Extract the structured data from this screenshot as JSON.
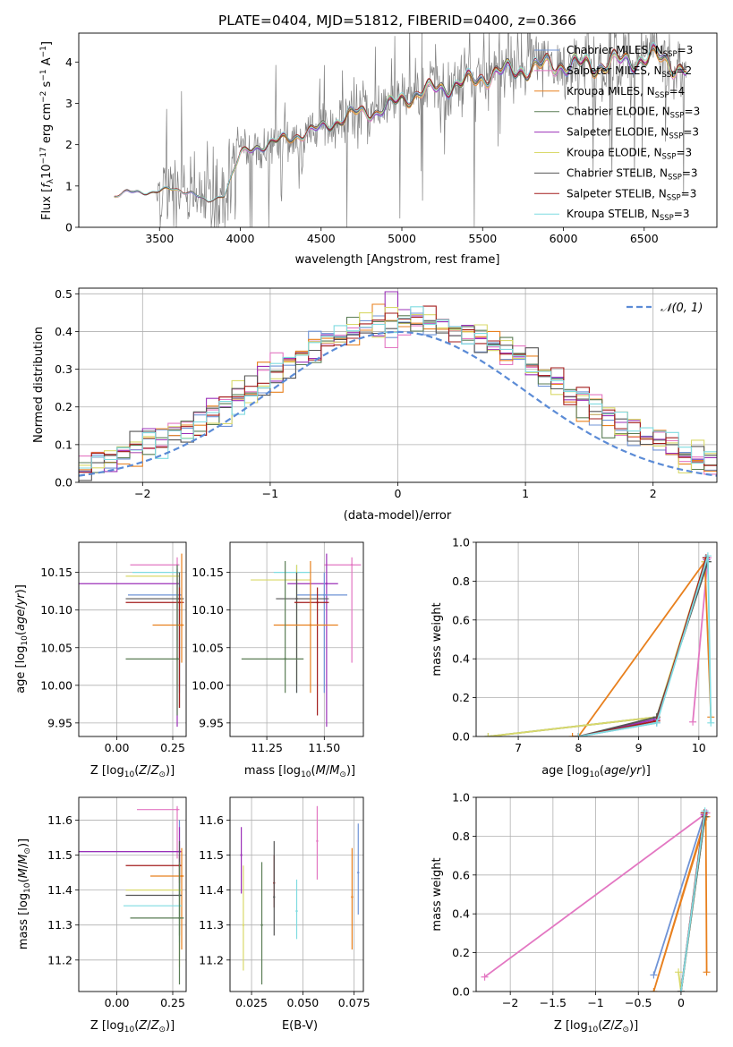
{
  "figure": {
    "title": "PLATE=0404, MJD=51812, FIBERID=0400, z=0.366"
  },
  "colors": {
    "Chabrier MILES": "#6f93d6",
    "Salpeter MILES": "#e377c2",
    "Kroupa MILES": "#e8801e",
    "Chabrier ELODIE": "#5a7d55",
    "Salpeter ELODIE": "#9b30b8",
    "Kroupa ELODIE": "#d9d96a",
    "Chabrier STELIB": "#555555",
    "Salpeter STELIB": "#a31c1c",
    "Kroupa STELIB": "#7fdbe0",
    "data": "#808080",
    "normal": "#5b8bd6"
  },
  "chart_data": [
    {
      "id": "spectrum",
      "type": "line",
      "xlabel": "wavelength [Angstrom, rest frame]",
      "ylabel_parts": [
        "Flux [",
        "f",
        "λ",
        "10",
        "−17",
        " erg cm",
        "−2",
        " s",
        "−1",
        " A",
        "−1",
        "]"
      ],
      "xlim": [
        3000,
        6950
      ],
      "ylim": [
        0,
        4.7
      ],
      "xticks": [
        3500,
        4000,
        4500,
        5000,
        5500,
        6000,
        6500
      ],
      "yticks": [
        0,
        1,
        2,
        3,
        4
      ],
      "continuum_anchors": [
        [
          3220,
          0.75
        ],
        [
          3300,
          0.85
        ],
        [
          3450,
          0.85
        ],
        [
          3560,
          0.92
        ],
        [
          3700,
          0.85
        ],
        [
          3800,
          0.6
        ],
        [
          3900,
          0.8
        ],
        [
          4000,
          1.75
        ],
        [
          4100,
          1.95
        ],
        [
          4300,
          2.15
        ],
        [
          4500,
          2.4
        ],
        [
          4700,
          2.75
        ],
        [
          4850,
          2.8
        ],
        [
          5000,
          3.1
        ],
        [
          5200,
          3.35
        ],
        [
          5400,
          3.5
        ],
        [
          5600,
          3.75
        ],
        [
          5800,
          3.85
        ],
        [
          6000,
          3.95
        ],
        [
          6200,
          3.9
        ],
        [
          6400,
          4.05
        ],
        [
          6600,
          4.1
        ],
        [
          6750,
          3.8
        ]
      ],
      "legend": [
        {
          "label": "Chabrier MILES, N",
          "sub": "SSP",
          "count": "=3"
        },
        {
          "label": "Salpeter MILES, N",
          "sub": "SSP",
          "count": "=2"
        },
        {
          "label": "Kroupa MILES, N",
          "sub": "SSP",
          "count": "=4"
        },
        {
          "label": "Chabrier ELODIE, N",
          "sub": "SSP",
          "count": "=3"
        },
        {
          "label": "Salpeter ELODIE, N",
          "sub": "SSP",
          "count": "=3"
        },
        {
          "label": "Kroupa ELODIE, N",
          "sub": "SSP",
          "count": "=3"
        },
        {
          "label": "Chabrier STELIB, N",
          "sub": "SSP",
          "count": "=3"
        },
        {
          "label": "Salpeter STELIB, N",
          "sub": "SSP",
          "count": "=3"
        },
        {
          "label": "Kroupa STELIB, N",
          "sub": "SSP",
          "count": "=3"
        }
      ],
      "legend_position": "upper right",
      "grid": false
    },
    {
      "id": "residuals",
      "type": "step",
      "xlabel": "(data-model)/error",
      "ylabel": "Normed distribution",
      "xlim": [
        -2.5,
        2.5
      ],
      "ylim": [
        0,
        0.515
      ],
      "xticks": [
        -2,
        -1,
        0,
        1,
        2
      ],
      "yticks": [
        0.0,
        0.1,
        0.2,
        0.3,
        0.4,
        0.5
      ],
      "bin_width": 0.1,
      "legend": "𝒩(0, 1)",
      "legend_position": "upper right",
      "grid": true
    },
    {
      "id": "age-vs-Z",
      "type": "errorbar",
      "xlabel": "Z [log10(Z/Z⊙)]",
      "ylabel": "age [log10(age/yr)]",
      "xlim": [
        -0.17,
        0.31
      ],
      "ylim": [
        9.932,
        10.19
      ],
      "xticks": [
        0.0,
        0.25
      ],
      "yticks": [
        9.95,
        10.0,
        10.05,
        10.1,
        10.15
      ],
      "grid": true,
      "points": [
        {
          "model": "Salpeter MILES",
          "x": 0.27,
          "y": 10.16,
          "xlo": 0.06,
          "xhi": 0.28,
          "ylo": 10.06,
          "yhi": 10.17
        },
        {
          "model": "Kroupa STELIB",
          "x": 0.27,
          "y": 10.15,
          "xlo": 0.07,
          "xhi": 0.28,
          "ylo": 10.05,
          "yhi": 10.16
        },
        {
          "model": "Kroupa ELODIE",
          "x": 0.27,
          "y": 10.145,
          "xlo": 0.04,
          "xhi": 0.28,
          "ylo": 10.0,
          "yhi": 10.15
        },
        {
          "model": "Salpeter ELODIE",
          "x": 0.27,
          "y": 10.135,
          "xlo": -0.17,
          "xhi": 0.28,
          "ylo": 9.945,
          "yhi": 10.155
        },
        {
          "model": "Chabrier MILES",
          "x": 0.28,
          "y": 10.12,
          "xlo": 0.05,
          "xhi": 0.29,
          "ylo": 9.99,
          "yhi": 10.14
        },
        {
          "model": "Chabrier STELIB",
          "x": 0.28,
          "y": 10.115,
          "xlo": 0.04,
          "xhi": 0.3,
          "ylo": 9.97,
          "yhi": 10.15
        },
        {
          "model": "Salpeter STELIB",
          "x": 0.28,
          "y": 10.11,
          "xlo": 0.04,
          "xhi": 0.3,
          "ylo": 9.97,
          "yhi": 10.13
        },
        {
          "model": "Kroupa MILES",
          "x": 0.29,
          "y": 10.08,
          "xlo": 0.16,
          "xhi": 0.3,
          "ylo": 10.03,
          "yhi": 10.175
        },
        {
          "model": "Chabrier ELODIE",
          "x": 0.27,
          "y": 10.035,
          "xlo": 0.04,
          "xhi": 0.28,
          "ylo": 9.96,
          "yhi": 10.16
        }
      ]
    },
    {
      "id": "age-vs-mass",
      "type": "errorbar",
      "xlabel": "mass [log10(M/M⊙)]",
      "ylabel": "",
      "xlim": [
        11.09,
        11.67
      ],
      "ylim": [
        9.932,
        10.19
      ],
      "xticks": [
        11.25,
        11.5
      ],
      "yticks": [
        9.95,
        10.0,
        10.05,
        10.1,
        10.15
      ],
      "grid": true,
      "points": [
        {
          "model": "Salpeter MILES",
          "x": 11.62,
          "y": 10.16,
          "xlo": 11.5,
          "xhi": 11.66,
          "ylo": 10.03,
          "yhi": 10.17
        },
        {
          "model": "Kroupa STELIB",
          "x": 11.38,
          "y": 10.15,
          "xlo": 11.28,
          "xhi": 11.44,
          "ylo": 9.99,
          "yhi": 10.16
        },
        {
          "model": "Kroupa ELODIE",
          "x": 11.38,
          "y": 10.14,
          "xlo": 11.18,
          "xhi": 11.44,
          "ylo": 10.0,
          "yhi": 10.16
        },
        {
          "model": "Salpeter ELODIE",
          "x": 11.51,
          "y": 10.135,
          "xlo": 11.34,
          "xhi": 11.56,
          "ylo": 9.945,
          "yhi": 10.175
        },
        {
          "model": "Chabrier MILES",
          "x": 11.5,
          "y": 10.12,
          "xlo": 11.38,
          "xhi": 11.6,
          "ylo": 9.99,
          "yhi": 10.15
        },
        {
          "model": "Chabrier STELIB",
          "x": 11.38,
          "y": 10.115,
          "xlo": 11.29,
          "xhi": 11.52,
          "ylo": 9.99,
          "yhi": 10.15
        },
        {
          "model": "Salpeter STELIB",
          "x": 11.47,
          "y": 10.11,
          "xlo": 11.37,
          "xhi": 11.52,
          "ylo": 9.96,
          "yhi": 10.13
        },
        {
          "model": "Kroupa MILES",
          "x": 11.44,
          "y": 10.08,
          "xlo": 11.28,
          "xhi": 11.56,
          "ylo": 9.99,
          "yhi": 10.165
        },
        {
          "model": "Chabrier ELODIE",
          "x": 11.33,
          "y": 10.035,
          "xlo": 11.14,
          "xhi": 11.41,
          "ylo": 9.99,
          "yhi": 10.165
        }
      ]
    },
    {
      "id": "weight-vs-age",
      "type": "line",
      "xlabel": "age [log10(age/yr)]",
      "ylabel": "mass weight",
      "xlim": [
        6.3,
        10.3
      ],
      "ylim": [
        0,
        1.0
      ],
      "xticks": [
        7,
        8,
        9,
        10
      ],
      "yticks": [
        0.0,
        0.2,
        0.4,
        0.6,
        0.8,
        1.0
      ],
      "grid": true,
      "series": [
        {
          "model": "Chabrier MILES",
          "x": [
            8.0,
            9.3,
            10.12
          ],
          "y": [
            0.0,
            0.07,
            0.92
          ]
        },
        {
          "model": "Salpeter MILES",
          "x": [
            9.9,
            10.15
          ],
          "y": [
            0.075,
            0.92
          ]
        },
        {
          "model": "Kroupa MILES",
          "x": [
            7.9,
            8.0,
            10.1,
            10.2
          ],
          "y": [
            0.0,
            0.0,
            0.9,
            0.1
          ]
        },
        {
          "model": "Chabrier ELODIE",
          "x": [
            6.5,
            9.3,
            10.15
          ],
          "y": [
            0.0,
            0.1,
            0.9
          ]
        },
        {
          "model": "Salpeter ELODIE",
          "x": [
            8.0,
            9.3,
            10.13
          ],
          "y": [
            0.0,
            0.09,
            0.91
          ]
        },
        {
          "model": "Kroupa ELODIE",
          "x": [
            6.5,
            9.3,
            10.1
          ],
          "y": [
            0.0,
            0.1,
            0.9
          ]
        },
        {
          "model": "Chabrier STELIB",
          "x": [
            8.0,
            9.3,
            10.15
          ],
          "y": [
            0.0,
            0.1,
            0.9
          ]
        },
        {
          "model": "Salpeter STELIB",
          "x": [
            8.0,
            9.3,
            10.12
          ],
          "y": [
            0.0,
            0.08,
            0.92
          ]
        },
        {
          "model": "Kroupa STELIB",
          "x": [
            8.0,
            9.3,
            10.15,
            10.2
          ],
          "y": [
            0.0,
            0.07,
            0.93,
            0.07
          ]
        }
      ]
    },
    {
      "id": "mass-vs-Z",
      "type": "errorbar",
      "xlabel": "Z [log10(Z/Z⊙)]",
      "ylabel": "mass [log10(M/M⊙)]",
      "xlim": [
        -0.17,
        0.31
      ],
      "ylim": [
        11.11,
        11.665
      ],
      "xticks": [
        0.0,
        0.25
      ],
      "yticks": [
        11.2,
        11.3,
        11.4,
        11.5,
        11.6
      ],
      "grid": true,
      "points": [
        {
          "model": "Salpeter MILES",
          "x": 0.27,
          "y": 11.63,
          "xlo": 0.09,
          "xhi": 0.28,
          "ylo": 11.49,
          "yhi": 11.64
        },
        {
          "model": "Chabrier MILES",
          "x": 0.28,
          "y": 11.51,
          "xlo": -0.17,
          "xhi": 0.29,
          "ylo": 11.38,
          "yhi": 11.6
        },
        {
          "model": "Salpeter ELODIE",
          "x": 0.28,
          "y": 11.51,
          "xlo": -0.17,
          "xhi": 0.29,
          "ylo": 11.39,
          "yhi": 11.58
        },
        {
          "model": "Salpeter STELIB",
          "x": 0.28,
          "y": 11.47,
          "xlo": 0.04,
          "xhi": 0.29,
          "ylo": 11.42,
          "yhi": 11.5
        },
        {
          "model": "Kroupa MILES",
          "x": 0.29,
          "y": 11.44,
          "xlo": 0.15,
          "xhi": 0.3,
          "ylo": 11.23,
          "yhi": 11.52
        },
        {
          "model": "Kroupa ELODIE",
          "x": 0.28,
          "y": 11.4,
          "xlo": 0.04,
          "xhi": 0.29,
          "ylo": 11.18,
          "yhi": 11.47
        },
        {
          "model": "Chabrier STELIB",
          "x": 0.28,
          "y": 11.385,
          "xlo": 0.04,
          "xhi": 0.29,
          "ylo": 11.27,
          "yhi": 11.54
        },
        {
          "model": "Kroupa STELIB",
          "x": 0.28,
          "y": 11.355,
          "xlo": 0.03,
          "xhi": 0.29,
          "ylo": 11.25,
          "yhi": 11.43
        },
        {
          "model": "Chabrier ELODIE",
          "x": 0.28,
          "y": 11.32,
          "xlo": 0.06,
          "xhi": 0.3,
          "ylo": 11.13,
          "yhi": 11.48
        }
      ]
    },
    {
      "id": "mass-vs-ebv",
      "type": "errorbar",
      "xlabel": "E(B-V)",
      "ylabel": "",
      "xlim": [
        0.0145,
        0.0795
      ],
      "ylim": [
        11.11,
        11.665
      ],
      "xticks": [
        0.025,
        0.05,
        0.075
      ],
      "yticks": [
        11.2,
        11.3,
        11.4,
        11.5,
        11.6
      ],
      "grid": true,
      "points": [
        {
          "model": "Salpeter ELODIE",
          "x": 0.02,
          "y": 11.5,
          "ylo": 11.39,
          "yhi": 11.58
        },
        {
          "model": "Kroupa ELODIE",
          "x": 0.021,
          "y": 11.3,
          "ylo": 11.17,
          "yhi": 11.47
        },
        {
          "model": "Chabrier ELODIE",
          "x": 0.03,
          "y": 11.3,
          "ylo": 11.13,
          "yhi": 11.48
        },
        {
          "model": "Salpeter STELIB",
          "x": 0.036,
          "y": 11.42,
          "ylo": 11.35,
          "yhi": 11.5
        },
        {
          "model": "Chabrier STELIB",
          "x": 0.036,
          "y": 11.38,
          "ylo": 11.27,
          "yhi": 11.54
        },
        {
          "model": "Kroupa STELIB",
          "x": 0.047,
          "y": 11.34,
          "ylo": 11.26,
          "yhi": 11.43
        },
        {
          "model": "Salpeter MILES",
          "x": 0.057,
          "y": 11.54,
          "ylo": 11.43,
          "yhi": 11.64
        },
        {
          "model": "Kroupa MILES",
          "x": 0.074,
          "y": 11.38,
          "ylo": 11.23,
          "yhi": 11.52
        },
        {
          "model": "Chabrier MILES",
          "x": 0.077,
          "y": 11.45,
          "ylo": 11.33,
          "yhi": 11.59
        }
      ]
    },
    {
      "id": "weight-vs-Z",
      "type": "line",
      "xlabel": "Z [log10(Z/Z⊙)]",
      "ylabel": "mass weight",
      "xlim": [
        -2.4,
        0.42
      ],
      "ylim": [
        0,
        1.0
      ],
      "xticks": [
        -2.0,
        -1.5,
        -1.0,
        -0.5,
        0.0
      ],
      "yticks": [
        0.0,
        0.2,
        0.4,
        0.6,
        0.8,
        1.0
      ],
      "grid": true,
      "series": [
        {
          "model": "Salpeter MILES",
          "x": [
            -2.3,
            0.3
          ],
          "y": [
            0.075,
            0.92
          ]
        },
        {
          "model": "Chabrier MILES",
          "x": [
            -0.32,
            0.28
          ],
          "y": [
            0.085,
            0.92
          ]
        },
        {
          "model": "Kroupa MILES",
          "x": [
            0.3,
            0.29,
            -0.32,
            0.3
          ],
          "y": [
            0.1,
            0.9,
            0.0,
            0.9
          ]
        },
        {
          "model": "Chabrier ELODIE",
          "x": [
            0.0,
            0.28
          ],
          "y": [
            0.0,
            0.9
          ]
        },
        {
          "model": "Salpeter ELODIE",
          "x": [
            0.0,
            0.27
          ],
          "y": [
            0.0,
            0.91
          ]
        },
        {
          "model": "Kroupa ELODIE",
          "x": [
            -0.03,
            0.0,
            0.28
          ],
          "y": [
            0.1,
            0.0,
            0.9
          ]
        },
        {
          "model": "Chabrier STELIB",
          "x": [
            0.0,
            0.28
          ],
          "y": [
            0.0,
            0.9
          ]
        },
        {
          "model": "Salpeter STELIB",
          "x": [
            0.0,
            0.27
          ],
          "y": [
            0.0,
            0.92
          ]
        },
        {
          "model": "Kroupa STELIB",
          "x": [
            0.0,
            0.28
          ],
          "y": [
            0.0,
            0.93
          ]
        }
      ]
    }
  ]
}
